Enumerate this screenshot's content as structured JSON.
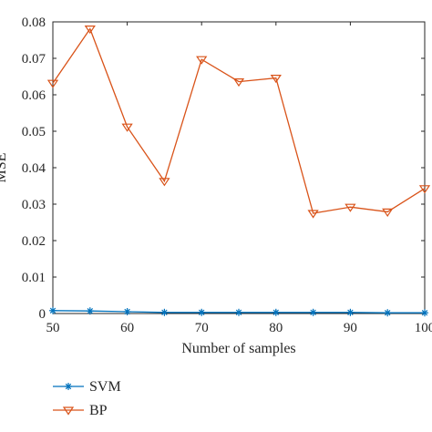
{
  "chart_data": {
    "type": "line",
    "xlabel": "Number of samples",
    "ylabel": "MSE",
    "xlim": [
      50,
      100
    ],
    "ylim": [
      0,
      0.08
    ],
    "x_ticks": [
      "50",
      "60",
      "70",
      "80",
      "90",
      "100"
    ],
    "y_ticks": [
      "0",
      "0.01",
      "0.02",
      "0.03",
      "0.04",
      "0.05",
      "0.06",
      "0.07",
      "0.08"
    ],
    "x": [
      50,
      55,
      60,
      65,
      70,
      75,
      80,
      85,
      90,
      95,
      100
    ],
    "grid": false,
    "legend_placement": "bottom-left, outside",
    "series": [
      {
        "name": "SVM",
        "color": "#0072bd",
        "marker": "asterisk",
        "values": [
          0.0008,
          0.0007,
          0.0005,
          0.0003,
          0.0003,
          0.0003,
          0.0003,
          0.0003,
          0.0003,
          0.0002,
          0.0002
        ]
      },
      {
        "name": "BP",
        "color": "#d95319",
        "marker": "triangle-down",
        "values": [
          0.0632,
          0.0781,
          0.0512,
          0.0363,
          0.0697,
          0.0636,
          0.0646,
          0.0275,
          0.0292,
          0.0279,
          0.0343
        ]
      }
    ]
  }
}
